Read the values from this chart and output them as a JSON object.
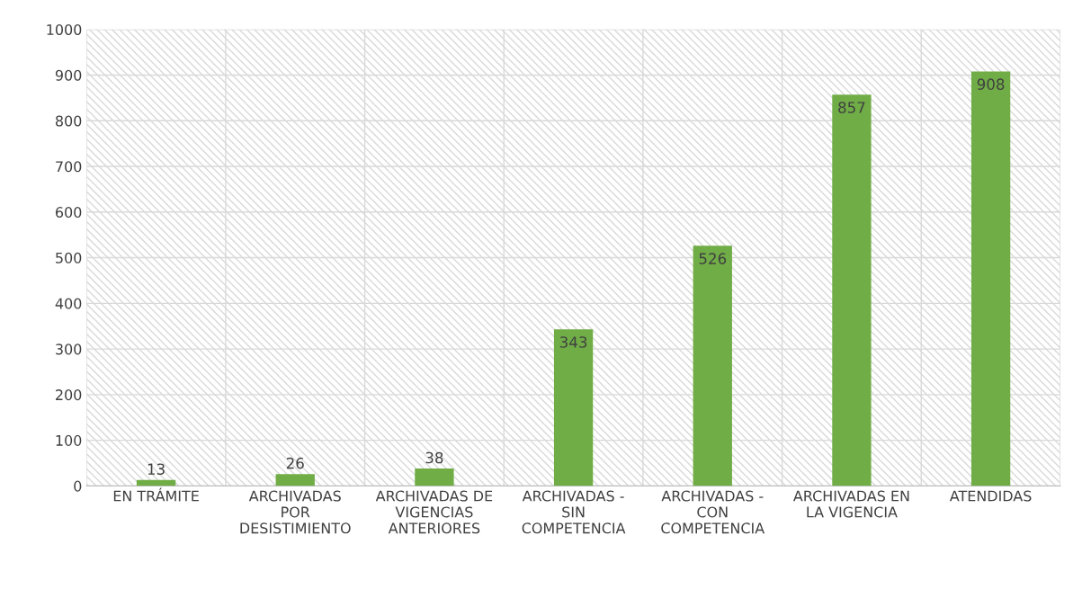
{
  "chart_data": {
    "type": "bar",
    "categories": [
      "EN TRÁMITE",
      "ARCHIVADAS POR DESISTIMIENTO",
      "ARCHIVADAS DE VIGENCIAS ANTERIORES",
      "ARCHIVADAS - SIN COMPETENCIA",
      "ARCHIVADAS - CON COMPETENCIA",
      "ARCHIVADAS EN LA VIGENCIA",
      "ATENDIDAS"
    ],
    "values": [
      13,
      26,
      38,
      343,
      526,
      857,
      908
    ],
    "color": "#70ad47",
    "ylim": [
      0,
      1000
    ],
    "yticks": [
      0,
      100,
      200,
      300,
      400,
      500,
      600,
      700,
      800,
      900,
      1000
    ],
    "grid": true,
    "data_labels": true
  }
}
